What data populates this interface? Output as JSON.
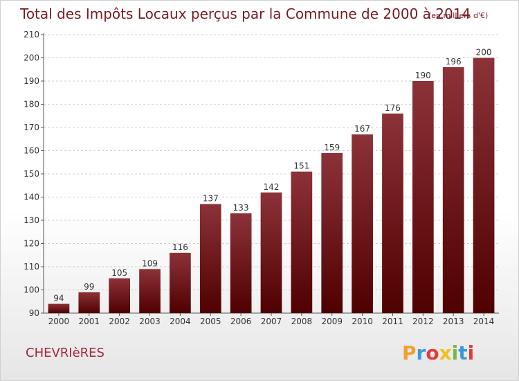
{
  "chart_data": {
    "type": "bar",
    "title": "Total des Impôts Locaux perçus par la Commune de 2000 à 2014",
    "unit_note": "(en milliers d'€)",
    "categories": [
      "2000",
      "2001",
      "2002",
      "2003",
      "2004",
      "2005",
      "2006",
      "2007",
      "2008",
      "2009",
      "2010",
      "2011",
      "2012",
      "2013",
      "2014"
    ],
    "values": [
      94,
      99,
      105,
      109,
      116,
      137,
      133,
      142,
      151,
      159,
      167,
      176,
      190,
      196,
      200
    ],
    "ylim": [
      90,
      210
    ],
    "yticks": [
      90,
      100,
      110,
      120,
      130,
      140,
      150,
      160,
      170,
      180,
      190,
      200,
      210
    ],
    "xlabel": "",
    "ylabel": "",
    "grid": true,
    "bar_color_top": "#8c3239",
    "bar_color_bottom": "#4f0000"
  },
  "commune": "CHEVRIèRES",
  "logo": {
    "letters": [
      "P",
      "r",
      "o",
      "x",
      "i",
      "t",
      "i"
    ],
    "colors": [
      "#f0a030",
      "#3a9ad9",
      "#e23b3b",
      "#f0c020",
      "#7ab648",
      "#3a9ad9",
      "#e23b3b"
    ]
  }
}
